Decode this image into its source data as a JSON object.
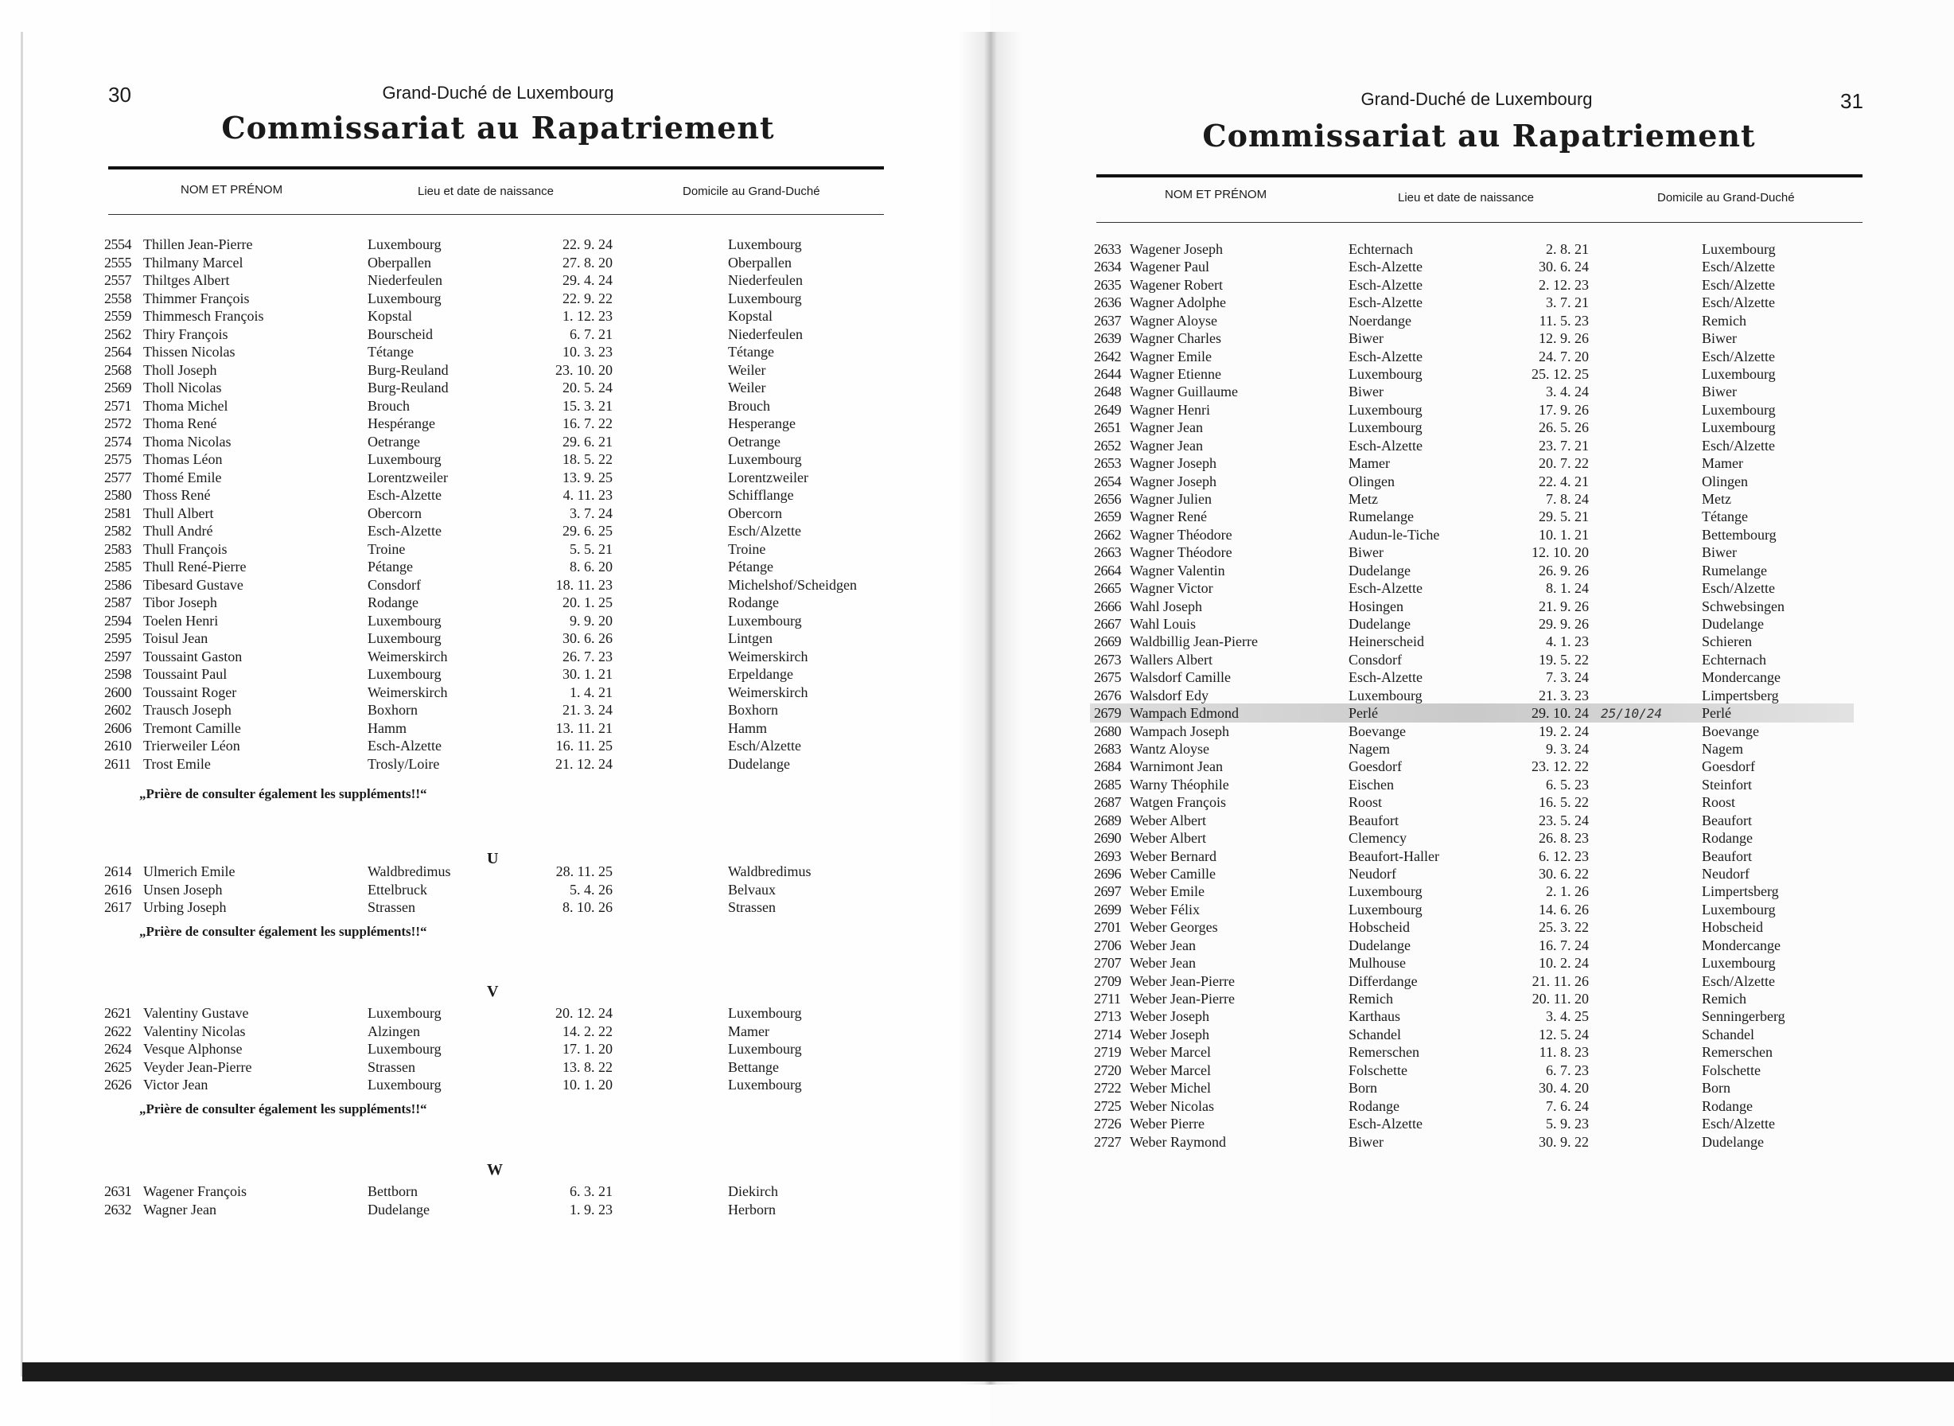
{
  "left": {
    "page_number": "30",
    "header": "Grand-Duché de Luxembourg",
    "title": "Commissariat au Rapatriement",
    "columns": [
      "NOM ET PRÉNOM",
      "Lieu et date de naissance",
      "Domicile au Grand-Duché"
    ],
    "note": "„Prière de consulter également les suppléments!!“",
    "sections": [
      {
        "letter": "",
        "rows": [
          [
            "2554",
            "Thillen Jean-Pierre",
            "Luxembourg",
            "22. 9. 24",
            "Luxembourg"
          ],
          [
            "2555",
            "Thilmany Marcel",
            "Oberpallen",
            "27. 8. 20",
            "Oberpallen"
          ],
          [
            "2557",
            "Thiltges Albert",
            "Niederfeulen",
            "29. 4. 24",
            "Niederfeulen"
          ],
          [
            "2558",
            "Thimmer François",
            "Luxembourg",
            "22. 9. 22",
            "Luxembourg"
          ],
          [
            "2559",
            "Thimmesch François",
            "Kopstal",
            "1. 12. 23",
            "Kopstal"
          ],
          [
            "2562",
            "Thiry François",
            "Bourscheid",
            "6. 7. 21",
            "Niederfeulen"
          ],
          [
            "2564",
            "Thissen Nicolas",
            "Tétange",
            "10. 3. 23",
            "Tétange"
          ],
          [
            "2568",
            "Tholl Joseph",
            "Burg-Reuland",
            "23. 10. 20",
            "Weiler"
          ],
          [
            "2569",
            "Tholl Nicolas",
            "Burg-Reuland",
            "20. 5. 24",
            "Weiler"
          ],
          [
            "2571",
            "Thoma Michel",
            "Brouch",
            "15. 3. 21",
            "Brouch"
          ],
          [
            "2572",
            "Thoma René",
            "Hespérange",
            "16. 7. 22",
            "Hesperange"
          ],
          [
            "2574",
            "Thoma Nicolas",
            "Oetrange",
            "29. 6. 21",
            "Oetrange"
          ],
          [
            "2575",
            "Thomas Léon",
            "Luxembourg",
            "18. 5. 22",
            "Luxembourg"
          ],
          [
            "2577",
            "Thomé Emile",
            "Lorentzweiler",
            "13. 9. 25",
            "Lorentzweiler"
          ],
          [
            "2580",
            "Thoss René",
            "Esch-Alzette",
            "4. 11. 23",
            "Schifflange"
          ],
          [
            "2581",
            "Thull Albert",
            "Obercorn",
            "3. 7. 24",
            "Obercorn"
          ],
          [
            "2582",
            "Thull André",
            "Esch-Alzette",
            "29. 6. 25",
            "Esch/Alzette"
          ],
          [
            "2583",
            "Thull François",
            "Troine",
            "5. 5. 21",
            "Troine"
          ],
          [
            "2585",
            "Thull René-Pierre",
            "Pétange",
            "8. 6. 20",
            "Pétange"
          ],
          [
            "2586",
            "Tibesard Gustave",
            "Consdorf",
            "18. 11. 23",
            "Michelshof/Scheidgen"
          ],
          [
            "2587",
            "Tibor Joseph",
            "Rodange",
            "20. 1. 25",
            "Rodange"
          ],
          [
            "2594",
            "Toelen Henri",
            "Luxembourg",
            "9. 9. 20",
            "Luxembourg"
          ],
          [
            "2595",
            "Toisul Jean",
            "Luxembourg",
            "30. 6. 26",
            "Lintgen"
          ],
          [
            "2597",
            "Toussaint Gaston",
            "Weimerskirch",
            "26. 7. 23",
            "Weimerskirch"
          ],
          [
            "2598",
            "Toussaint Paul",
            "Luxembourg",
            "30. 1. 21",
            "Erpeldange"
          ],
          [
            "2600",
            "Toussaint Roger",
            "Weimerskirch",
            "1. 4. 21",
            "Weimerskirch"
          ],
          [
            "2602",
            "Trausch Joseph",
            "Boxhorn",
            "21. 3. 24",
            "Boxhorn"
          ],
          [
            "2606",
            "Tremont Camille",
            "Hamm",
            "13. 11. 21",
            "Hamm"
          ],
          [
            "2610",
            "Trierweiler Léon",
            "Esch-Alzette",
            "16. 11. 25",
            "Esch/Alzette"
          ],
          [
            "2611",
            "Trost Emile",
            "Trosly/Loire",
            "21. 12. 24",
            "Dudelange"
          ]
        ]
      },
      {
        "letter": "U",
        "rows": [
          [
            "2614",
            "Ulmerich Emile",
            "Waldbredimus",
            "28. 11. 25",
            "Waldbredimus"
          ],
          [
            "2616",
            "Unsen Joseph",
            "Ettelbruck",
            "5. 4. 26",
            "Belvaux"
          ],
          [
            "2617",
            "Urbing Joseph",
            "Strassen",
            "8. 10. 26",
            "Strassen"
          ]
        ]
      },
      {
        "letter": "V",
        "rows": [
          [
            "2621",
            "Valentiny Gustave",
            "Luxembourg",
            "20. 12. 24",
            "Luxembourg"
          ],
          [
            "2622",
            "Valentiny Nicolas",
            "Alzingen",
            "14. 2. 22",
            "Mamer"
          ],
          [
            "2624",
            "Vesque Alphonse",
            "Luxembourg",
            "17. 1. 20",
            "Luxembourg"
          ],
          [
            "2625",
            "Veyder Jean-Pierre",
            "Strassen",
            "13. 8. 22",
            "Bettange"
          ],
          [
            "2626",
            "Victor Jean",
            "Luxembourg",
            "10. 1. 20",
            "Luxembourg"
          ]
        ]
      },
      {
        "letter": "W",
        "rows": [
          [
            "2631",
            "Wagener François",
            "Bettborn",
            "6. 3. 21",
            "Diekirch"
          ],
          [
            "2632",
            "Wagner Jean",
            "Dudelange",
            "1. 9. 23",
            "Herborn"
          ]
        ]
      }
    ]
  },
  "right": {
    "page_number": "31",
    "header": "Grand-Duché de Luxembourg",
    "title": "Commissariat au Rapatriement",
    "columns": [
      "NOM ET PRÉNOM",
      "Lieu et date de naissance",
      "Domicile au Grand-Duché"
    ],
    "handwritten_annotation": "25/10/24",
    "rows": [
      [
        "2633",
        "Wagener Joseph",
        "Echternach",
        "2. 8. 21",
        "Luxembourg"
      ],
      [
        "2634",
        "Wagener Paul",
        "Esch-Alzette",
        "30. 6. 24",
        "Esch/Alzette"
      ],
      [
        "2635",
        "Wagener Robert",
        "Esch-Alzette",
        "2. 12. 23",
        "Esch/Alzette"
      ],
      [
        "2636",
        "Wagner Adolphe",
        "Esch-Alzette",
        "3. 7. 21",
        "Esch/Alzette"
      ],
      [
        "2637",
        "Wagner Aloyse",
        "Noerdange",
        "11. 5. 23",
        "Remich"
      ],
      [
        "2639",
        "Wagner Charles",
        "Biwer",
        "12. 9. 26",
        "Biwer"
      ],
      [
        "2642",
        "Wagner Emile",
        "Esch-Alzette",
        "24. 7. 20",
        "Esch/Alzette"
      ],
      [
        "2644",
        "Wagner Etienne",
        "Luxembourg",
        "25. 12. 25",
        "Luxembourg"
      ],
      [
        "2648",
        "Wagner Guillaume",
        "Biwer",
        "3. 4. 24",
        "Biwer"
      ],
      [
        "2649",
        "Wagner Henri",
        "Luxembourg",
        "17. 9. 26",
        "Luxembourg"
      ],
      [
        "2651",
        "Wagner Jean",
        "Luxembourg",
        "26. 5. 26",
        "Luxembourg"
      ],
      [
        "2652",
        "Wagner Jean",
        "Esch-Alzette",
        "23. 7. 21",
        "Esch/Alzette"
      ],
      [
        "2653",
        "Wagner Joseph",
        "Mamer",
        "20. 7. 22",
        "Mamer"
      ],
      [
        "2654",
        "Wagner Joseph",
        "Olingen",
        "22. 4. 21",
        "Olingen"
      ],
      [
        "2656",
        "Wagner Julien",
        "Metz",
        "7. 8. 24",
        "Metz"
      ],
      [
        "2659",
        "Wagner René",
        "Rumelange",
        "29. 5. 21",
        "Tétange"
      ],
      [
        "2662",
        "Wagner Théodore",
        "Audun-le-Tiche",
        "10. 1. 21",
        "Bettembourg"
      ],
      [
        "2663",
        "Wagner Théodore",
        "Biwer",
        "12. 10. 20",
        "Biwer"
      ],
      [
        "2664",
        "Wagner Valentin",
        "Dudelange",
        "26. 9. 26",
        "Rumelange"
      ],
      [
        "2665",
        "Wagner Victor",
        "Esch-Alzette",
        "8. 1. 24",
        "Esch/Alzette"
      ],
      [
        "2666",
        "Wahl Joseph",
        "Hosingen",
        "21. 9. 26",
        "Schwebsingen"
      ],
      [
        "2667",
        "Wahl Louis",
        "Dudelange",
        "29. 9. 26",
        "Dudelange"
      ],
      [
        "2669",
        "Waldbillig Jean-Pierre",
        "Heinerscheid",
        "4. 1. 23",
        "Schieren"
      ],
      [
        "2673",
        "Wallers Albert",
        "Consdorf",
        "19. 5. 22",
        "Echternach"
      ],
      [
        "2675",
        "Walsdorf Camille",
        "Esch-Alzette",
        "7. 3. 24",
        "Mondercange"
      ],
      [
        "2676",
        "Walsdorf Edy",
        "Luxembourg",
        "21. 3. 23",
        "Limpertsberg"
      ],
      [
        "2679",
        "Wampach Edmond",
        "Perlé",
        "29. 10. 24",
        "Perlé"
      ],
      [
        "2680",
        "Wampach Joseph",
        "Boevange",
        "19. 2. 24",
        "Boevange"
      ],
      [
        "2683",
        "Wantz Aloyse",
        "Nagem",
        "9. 3. 24",
        "Nagem"
      ],
      [
        "2684",
        "Warnimont Jean",
        "Goesdorf",
        "23. 12. 22",
        "Goesdorf"
      ],
      [
        "2685",
        "Warny Théophile",
        "Eischen",
        "6. 5. 23",
        "Steinfort"
      ],
      [
        "2687",
        "Watgen François",
        "Roost",
        "16. 5. 22",
        "Roost"
      ],
      [
        "2689",
        "Weber Albert",
        "Beaufort",
        "23. 5. 24",
        "Beaufort"
      ],
      [
        "2690",
        "Weber Albert",
        "Clemency",
        "26. 8. 23",
        "Rodange"
      ],
      [
        "2693",
        "Weber Bernard",
        "Beaufort-Haller",
        "6. 12. 23",
        "Beaufort"
      ],
      [
        "2696",
        "Weber Camille",
        "Neudorf",
        "30. 6. 22",
        "Neudorf"
      ],
      [
        "2697",
        "Weber Emile",
        "Luxembourg",
        "2. 1. 26",
        "Limpertsberg"
      ],
      [
        "2699",
        "Weber Félix",
        "Luxembourg",
        "14. 6. 26",
        "Luxembourg"
      ],
      [
        "2701",
        "Weber Georges",
        "Hobscheid",
        "25. 3. 22",
        "Hobscheid"
      ],
      [
        "2706",
        "Weber Jean",
        "Dudelange",
        "16. 7. 24",
        "Mondercange"
      ],
      [
        "2707",
        "Weber Jean",
        "Mulhouse",
        "10. 2. 24",
        "Luxembourg"
      ],
      [
        "2709",
        "Weber Jean-Pierre",
        "Differdange",
        "21. 11. 26",
        "Esch/Alzette"
      ],
      [
        "2711",
        "Weber Jean-Pierre",
        "Remich",
        "20. 11. 20",
        "Remich"
      ],
      [
        "2713",
        "Weber Joseph",
        "Karthaus",
        "3. 4. 25",
        "Senningerberg"
      ],
      [
        "2714",
        "Weber Joseph",
        "Schandel",
        "12. 5. 24",
        "Schandel"
      ],
      [
        "2719",
        "Weber Marcel",
        "Remerschen",
        "11. 8. 23",
        "Remerschen"
      ],
      [
        "2720",
        "Weber Marcel",
        "Folschette",
        "6. 7. 23",
        "Folschette"
      ],
      [
        "2722",
        "Weber Michel",
        "Born",
        "30. 4. 20",
        "Born"
      ],
      [
        "2725",
        "Weber Nicolas",
        "Rodange",
        "7. 6. 24",
        "Rodange"
      ],
      [
        "2726",
        "Weber Pierre",
        "Esch-Alzette",
        "5. 9. 23",
        "Esch/Alzette"
      ],
      [
        "2727",
        "Weber Raymond",
        "Biwer",
        "30. 9. 22",
        "Dudelange"
      ]
    ]
  }
}
